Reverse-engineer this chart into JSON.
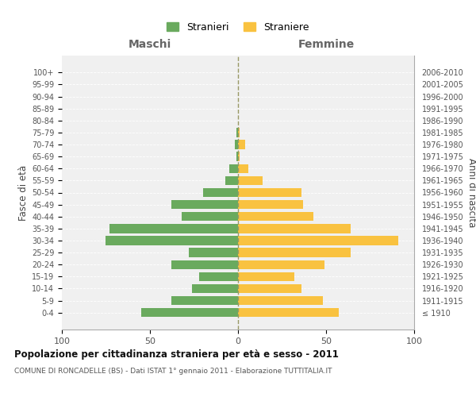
{
  "age_groups": [
    "100+",
    "95-99",
    "90-94",
    "85-89",
    "80-84",
    "75-79",
    "70-74",
    "65-69",
    "60-64",
    "55-59",
    "50-54",
    "45-49",
    "40-44",
    "35-39",
    "30-34",
    "25-29",
    "20-24",
    "15-19",
    "10-14",
    "5-9",
    "0-4"
  ],
  "birth_years": [
    "≤ 1910",
    "1911-1915",
    "1916-1920",
    "1921-1925",
    "1926-1930",
    "1931-1935",
    "1936-1940",
    "1941-1945",
    "1946-1950",
    "1951-1955",
    "1956-1960",
    "1961-1965",
    "1966-1970",
    "1971-1975",
    "1976-1980",
    "1981-1985",
    "1986-1990",
    "1991-1995",
    "1996-2000",
    "2001-2005",
    "2006-2010"
  ],
  "maschi": [
    0,
    0,
    0,
    0,
    0,
    1,
    2,
    1,
    5,
    7,
    20,
    38,
    32,
    73,
    75,
    28,
    38,
    22,
    26,
    38,
    55
  ],
  "femmine": [
    0,
    0,
    0,
    0,
    0,
    1,
    4,
    1,
    6,
    14,
    36,
    37,
    43,
    64,
    91,
    64,
    49,
    32,
    36,
    48,
    57
  ],
  "male_color": "#6aaa5e",
  "female_color": "#f9c240",
  "background_color": "#ffffff",
  "plot_bg_color": "#f0f0f0",
  "grid_color": "#ffffff",
  "dashed_color": "#999966",
  "title": "Popolazione per cittadinanza straniera per età e sesso - 2011",
  "subtitle": "COMUNE DI RONCADELLE (BS) - Dati ISTAT 1° gennaio 2011 - Elaborazione TUTTITALIA.IT",
  "ylabel_left": "Fasce di età",
  "ylabel_right": "Anni di nascita",
  "xlabel_left": "Maschi",
  "xlabel_right": "Femmine",
  "legend_stranieri": "Stranieri",
  "legend_straniere": "Straniere",
  "xlim": 100
}
